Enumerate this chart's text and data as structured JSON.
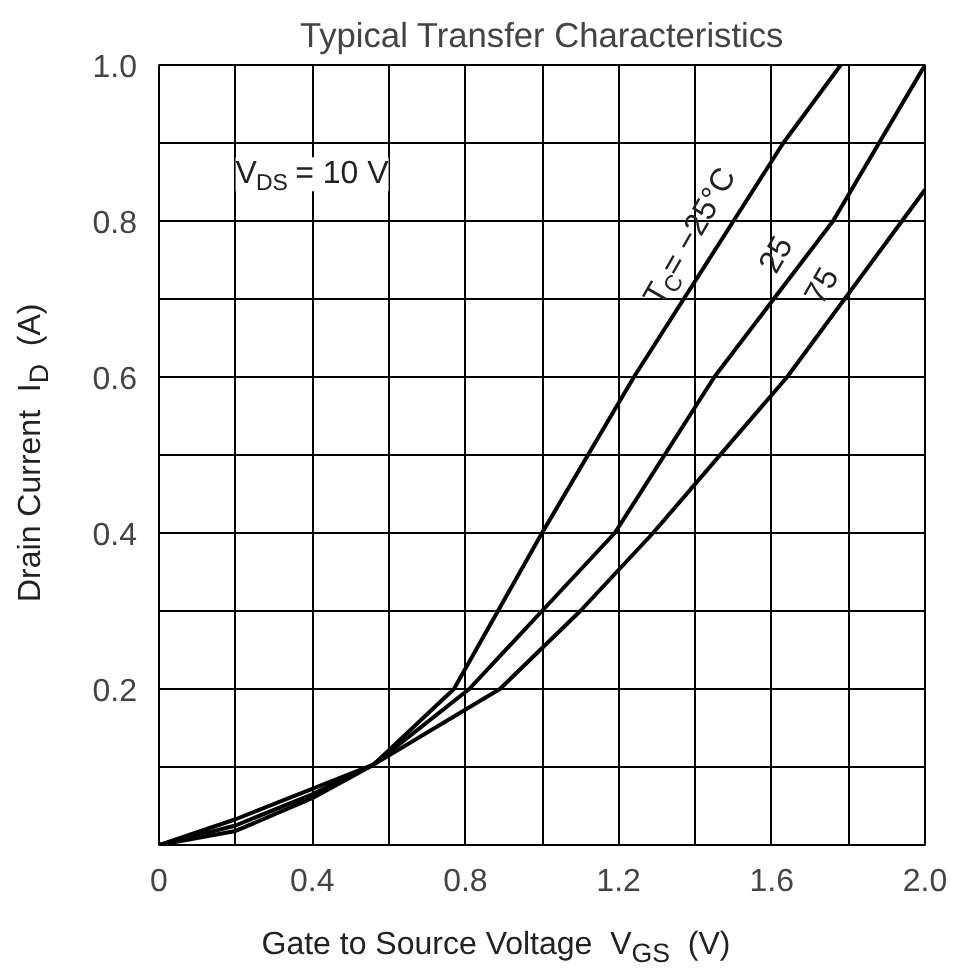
{
  "chart_data": {
    "type": "line",
    "title": "Typical Transfer Characteristics",
    "xlabel": "Gate to Source Voltage  V$_{GS}$  (V)",
    "ylabel": "Drain Current  I$_{D}$  (A)",
    "xlim": [
      0,
      2.0
    ],
    "ylim": [
      0,
      1.0
    ],
    "xticks": [
      {
        "value": 0,
        "label": "0"
      },
      {
        "value": 0.2,
        "label": null
      },
      0.4,
      {
        "value": 0.6,
        "label": null
      },
      0.8,
      {
        "value": 1.0,
        "label": null
      },
      1.2,
      {
        "value": 1.4,
        "label": null
      },
      1.6,
      {
        "value": 1.8,
        "label": null
      },
      {
        "value": 2.0,
        "label": "2.0"
      }
    ],
    "yticks": [
      {
        "value": 0,
        "label": null
      },
      {
        "value": 0.1,
        "label": null
      },
      0.2,
      {
        "value": 0.3,
        "label": null
      },
      0.4,
      {
        "value": 0.5,
        "label": null
      },
      0.6,
      {
        "value": 0.7,
        "label": null
      },
      0.8,
      {
        "value": 0.9,
        "label": null
      },
      {
        "value": 1.0,
        "label": "1.0"
      }
    ],
    "grid": true,
    "marker": "none",
    "line_style": "solid",
    "series": [
      {
        "color": "#000000",
        "x": [
          0,
          0.2,
          0.4,
          0.56,
          0.77,
          1.0,
          1.24,
          1.5,
          1.63,
          1.78
        ],
        "values": [
          0,
          0.018,
          0.06,
          0.103,
          0.2,
          0.4,
          0.6,
          0.8,
          0.9,
          1.0
        ]
      },
      {
        "color": "#000000",
        "x": [
          0,
          0.2,
          0.4,
          0.56,
          0.81,
          1.0,
          1.19,
          1.45,
          1.76,
          2.0
        ],
        "values": [
          0,
          0.025,
          0.065,
          0.103,
          0.2,
          0.3,
          0.4,
          0.6,
          0.8,
          1.0
        ]
      },
      {
        "color": "#000000",
        "x": [
          0,
          0.2,
          0.4,
          0.56,
          0.89,
          1.1,
          1.29,
          1.64,
          2.0
        ],
        "values": [
          0,
          0.033,
          0.072,
          0.103,
          0.2,
          0.3,
          0.4,
          0.6,
          0.84
        ]
      }
    ],
    "annotations": [
      "V$_{DS}$ = 10 V",
      {
        "text": "T$_{C}$= −25°C",
        "x": 1.45,
        "y": 0.76
      },
      {
        "text": "25",
        "x": 1.67,
        "y": 0.74
      },
      {
        "text": "75",
        "x": 1.79,
        "y": 0.7
      }
    ]
  }
}
